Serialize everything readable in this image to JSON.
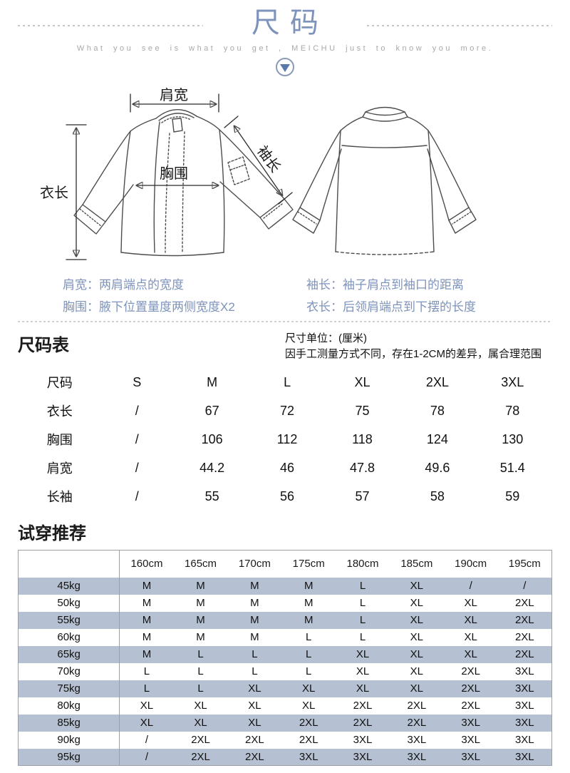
{
  "header": {
    "title": "尺码",
    "subtitle": "What you see is what you get , MEICHU  just to know you more."
  },
  "diagram": {
    "label_shoulder": "肩宽",
    "label_length": "衣长",
    "label_chest": "胸围",
    "label_sleeve": "袖长",
    "note_shoulder": "肩宽：两肩端点的宽度",
    "note_chest": "胸围：腋下位置量度两侧宽度X2",
    "note_sleeve": "袖长：袖子肩点到袖口的距离",
    "note_length": "衣长：后领肩端点到下摆的长度"
  },
  "size_table": {
    "heading": "尺码表",
    "unit_note": "尺寸单位：(厘米)",
    "tolerance_note": "因手工测量方式不同，存在1-2CM的差异，属合理范围",
    "header": [
      "尺码",
      "S",
      "M",
      "L",
      "XL",
      "2XL",
      "3XL"
    ],
    "rows": [
      [
        "衣长",
        "/",
        "67",
        "72",
        "75",
        "78",
        "78"
      ],
      [
        "胸围",
        "/",
        "106",
        "112",
        "118",
        "124",
        "130"
      ],
      [
        "肩宽",
        "/",
        "44.2",
        "46",
        "47.8",
        "49.6",
        "51.4"
      ],
      [
        "长袖",
        "/",
        "55",
        "56",
        "57",
        "58",
        "59"
      ]
    ]
  },
  "fit_table": {
    "heading": "试穿推荐",
    "header": [
      "",
      "160cm",
      "165cm",
      "170cm",
      "175cm",
      "180cm",
      "185cm",
      "190cm",
      "195cm"
    ],
    "rows": [
      [
        "45kg",
        "M",
        "M",
        "M",
        "M",
        "L",
        "XL",
        "/",
        "/"
      ],
      [
        "50kg",
        "M",
        "M",
        "M",
        "M",
        "L",
        "XL",
        "XL",
        "2XL"
      ],
      [
        "55kg",
        "M",
        "M",
        "M",
        "M",
        "L",
        "XL",
        "XL",
        "2XL"
      ],
      [
        "60kg",
        "M",
        "M",
        "M",
        "L",
        "L",
        "XL",
        "XL",
        "2XL"
      ],
      [
        "65kg",
        "M",
        "L",
        "L",
        "L",
        "XL",
        "XL",
        "XL",
        "2XL"
      ],
      [
        "70kg",
        "L",
        "L",
        "L",
        "L",
        "XL",
        "XL",
        "2XL",
        "3XL"
      ],
      [
        "75kg",
        "L",
        "L",
        "XL",
        "XL",
        "XL",
        "XL",
        "2XL",
        "3XL"
      ],
      [
        "80kg",
        "XL",
        "XL",
        "XL",
        "XL",
        "2XL",
        "2XL",
        "2XL",
        "3XL"
      ],
      [
        "85kg",
        "XL",
        "XL",
        "XL",
        "2XL",
        "2XL",
        "2XL",
        "3XL",
        "3XL"
      ],
      [
        "90kg",
        "/",
        "2XL",
        "2XL",
        "2XL",
        "3XL",
        "3XL",
        "3XL",
        "3XL"
      ],
      [
        "95kg",
        "/",
        "2XL",
        "2XL",
        "3XL",
        "3XL",
        "3XL",
        "3XL",
        "3XL"
      ]
    ]
  },
  "colors": {
    "accent_blue": "#7e93bb",
    "subtitle_gray": "#a9a9a9",
    "row_highlight": "#b5c1d2",
    "table_border": "#9aa0a6"
  }
}
